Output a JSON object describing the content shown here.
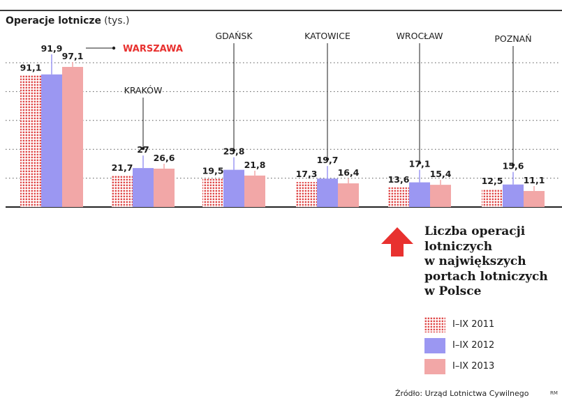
{
  "header": {
    "title": "Operacje lotnicze",
    "unit": "(tys.)"
  },
  "chart_data": {
    "type": "bar",
    "title": "Operacje lotnicze (tys.)",
    "categories": [
      "WARSZAWA",
      "KRAKÓW",
      "GDAŃSK",
      "KATOWICE",
      "WROCŁAW",
      "POZNAŃ"
    ],
    "series": [
      {
        "name": "I–IX 2011",
        "values": [
          91.1,
          21.7,
          19.5,
          17.3,
          13.6,
          12.5
        ],
        "labels": [
          "91,1",
          "21,7",
          "19,5",
          "17,3",
          "13,6",
          "12,5"
        ]
      },
      {
        "name": "I–IX 2012",
        "values": [
          91.9,
          27,
          25.8,
          19.7,
          17.1,
          15.6
        ],
        "labels": [
          "91,9",
          "27",
          "25,8",
          "19,7",
          "17,1",
          "15,6"
        ]
      },
      {
        "name": "I–IX 2013",
        "values": [
          97.1,
          26.6,
          21.8,
          16.4,
          15.4,
          11.1
        ],
        "labels": [
          "97,1",
          "26,6",
          "21,8",
          "16,4",
          "15,4",
          "11,1"
        ]
      }
    ],
    "ylim": [
      0,
      100
    ],
    "grid": true,
    "highlight_category": "WARSZAWA",
    "colors": {
      "2011_dots": "#e04a4a",
      "2012": "#9b97f2",
      "2013": "#f2a7a7",
      "highlight_text": "#e8312f",
      "grid": "#555555"
    }
  },
  "panel": {
    "title_lines": [
      "Liczba operacji",
      "lotniczych",
      "w największych",
      "portach lotniczych",
      "w Polsce"
    ],
    "arrow_color": "#e8312f",
    "arrow_icon": "up-arrow-icon"
  },
  "legend": [
    {
      "label": "I–IX 2011"
    },
    {
      "label": "I–IX 2012"
    },
    {
      "label": "I–IX 2013"
    }
  ],
  "footer": {
    "source": "Źródło: Urząd Lotnictwa Cywilnego",
    "initials": "RM"
  }
}
